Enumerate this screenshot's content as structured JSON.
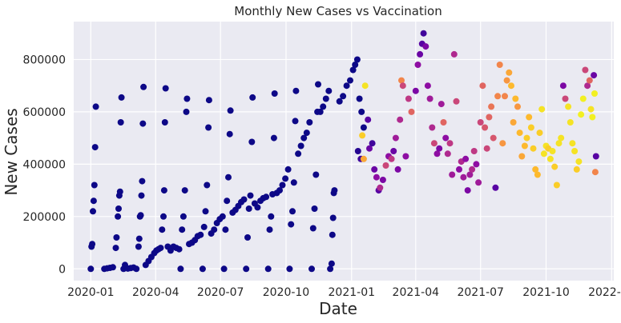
{
  "chart_data": {
    "type": "scatter",
    "title": "Monthly New Cases vs Vaccination",
    "xlabel": "Date",
    "ylabel": "New Cases",
    "x_range": [
      "2019-12-08",
      "2022-01-04"
    ],
    "y_range": [
      -45000,
      945000
    ],
    "x_ticks": [
      "2020-01-01",
      "2020-04-01",
      "2020-07-01",
      "2020-10-01",
      "2021-01-01",
      "2021-04-01",
      "2021-07-01",
      "2021-10-01",
      "2022-01-01"
    ],
    "x_tick_labels": [
      "2020-01",
      "2020-04",
      "2020-07",
      "2020-10",
      "2021-01",
      "2021-04",
      "2021-07",
      "2021-10",
      "2022-01"
    ],
    "y_ticks": [
      0,
      200000,
      400000,
      600000,
      800000
    ],
    "y_tick_labels": [
      "0",
      "200000",
      "400000",
      "600000",
      "800000"
    ],
    "grid": true,
    "legend": "none",
    "colormap": "plasma",
    "background_color": "#eaeaf2",
    "colors": {
      "unvaccinated": "#0d0887",
      "low": "#4c02a1",
      "mid": "#9c179e",
      "mid_high": "#cc4778",
      "high": "#ed7953",
      "very_high": "#fdb42f",
      "max": "#f0f921"
    },
    "points": [
      [
        "2020-01-01",
        0,
        0
      ],
      [
        "2020-01-02",
        85000,
        0
      ],
      [
        "2020-01-03",
        95000,
        0
      ],
      [
        "2020-01-04",
        220000,
        0
      ],
      [
        "2020-01-05",
        260000,
        0
      ],
      [
        "2020-01-06",
        320000,
        0
      ],
      [
        "2020-01-07",
        465000,
        0
      ],
      [
        "2020-01-08",
        620000,
        0
      ],
      [
        "2020-01-20",
        0,
        0
      ],
      [
        "2020-01-24",
        2000,
        0
      ],
      [
        "2020-01-28",
        4000,
        0
      ],
      [
        "2020-02-01",
        6000,
        0
      ],
      [
        "2020-02-05",
        80000,
        0
      ],
      [
        "2020-02-06",
        120000,
        0
      ],
      [
        "2020-02-08",
        200000,
        0
      ],
      [
        "2020-02-09",
        230000,
        0
      ],
      [
        "2020-02-10",
        280000,
        0
      ],
      [
        "2020-02-11",
        295000,
        0
      ],
      [
        "2020-02-12",
        560000,
        0
      ],
      [
        "2020-02-13",
        655000,
        0
      ],
      [
        "2020-02-16",
        0,
        0
      ],
      [
        "2020-02-18",
        15000,
        0
      ],
      [
        "2020-02-22",
        1000,
        0
      ],
      [
        "2020-02-26",
        3000,
        0
      ],
      [
        "2020-03-01",
        5000,
        0
      ],
      [
        "2020-03-05",
        0,
        0
      ],
      [
        "2020-03-08",
        85000,
        0
      ],
      [
        "2020-03-09",
        115000,
        0
      ],
      [
        "2020-03-10",
        200000,
        0
      ],
      [
        "2020-03-11",
        205000,
        0
      ],
      [
        "2020-03-12",
        280000,
        0
      ],
      [
        "2020-03-13",
        335000,
        0
      ],
      [
        "2020-03-14",
        555000,
        0
      ],
      [
        "2020-03-15",
        695000,
        0
      ],
      [
        "2020-03-18",
        15000,
        0
      ],
      [
        "2020-03-22",
        30000,
        0
      ],
      [
        "2020-03-26",
        45000,
        0
      ],
      [
        "2020-03-30",
        60000,
        0
      ],
      [
        "2020-04-02",
        70000,
        0
      ],
      [
        "2020-04-05",
        75000,
        0
      ],
      [
        "2020-04-08",
        80000,
        0
      ],
      [
        "2020-04-10",
        150000,
        0
      ],
      [
        "2020-04-12",
        200000,
        0
      ],
      [
        "2020-04-13",
        300000,
        0
      ],
      [
        "2020-04-14",
        560000,
        0
      ],
      [
        "2020-04-15",
        690000,
        0
      ],
      [
        "2020-04-18",
        85000,
        0
      ],
      [
        "2020-04-22",
        70000,
        0
      ],
      [
        "2020-04-26",
        85000,
        0
      ],
      [
        "2020-04-30",
        80000,
        0
      ],
      [
        "2020-05-04",
        75000,
        0
      ],
      [
        "2020-05-06",
        0,
        0
      ],
      [
        "2020-05-08",
        150000,
        0
      ],
      [
        "2020-05-10",
        200000,
        0
      ],
      [
        "2020-05-12",
        300000,
        0
      ],
      [
        "2020-05-14",
        600000,
        0
      ],
      [
        "2020-05-15",
        650000,
        0
      ],
      [
        "2020-05-18",
        95000,
        0
      ],
      [
        "2020-05-22",
        100000,
        0
      ],
      [
        "2020-05-26",
        110000,
        0
      ],
      [
        "2020-05-30",
        125000,
        0
      ],
      [
        "2020-06-03",
        130000,
        0
      ],
      [
        "2020-06-06",
        0,
        0
      ],
      [
        "2020-06-08",
        160000,
        0
      ],
      [
        "2020-06-10",
        220000,
        0
      ],
      [
        "2020-06-12",
        320000,
        0
      ],
      [
        "2020-06-14",
        540000,
        0
      ],
      [
        "2020-06-15",
        645000,
        0
      ],
      [
        "2020-06-18",
        135000,
        0
      ],
      [
        "2020-06-22",
        150000,
        0
      ],
      [
        "2020-06-26",
        175000,
        0
      ],
      [
        "2020-06-30",
        190000,
        0
      ],
      [
        "2020-07-04",
        200000,
        0
      ],
      [
        "2020-07-06",
        0,
        0
      ],
      [
        "2020-07-08",
        150000,
        0
      ],
      [
        "2020-07-10",
        260000,
        0
      ],
      [
        "2020-07-12",
        350000,
        0
      ],
      [
        "2020-07-14",
        515000,
        0
      ],
      [
        "2020-07-15",
        605000,
        0
      ],
      [
        "2020-07-18",
        215000,
        0
      ],
      [
        "2020-07-22",
        225000,
        0
      ],
      [
        "2020-07-26",
        240000,
        0
      ],
      [
        "2020-07-30",
        255000,
        0
      ],
      [
        "2020-08-03",
        265000,
        0
      ],
      [
        "2020-08-06",
        0,
        0
      ],
      [
        "2020-08-08",
        120000,
        0
      ],
      [
        "2020-08-10",
        230000,
        0
      ],
      [
        "2020-08-12",
        280000,
        0
      ],
      [
        "2020-08-14",
        485000,
        0
      ],
      [
        "2020-08-15",
        655000,
        0
      ],
      [
        "2020-08-18",
        250000,
        0
      ],
      [
        "2020-08-22",
        235000,
        0
      ],
      [
        "2020-08-26",
        260000,
        0
      ],
      [
        "2020-08-30",
        270000,
        0
      ],
      [
        "2020-09-03",
        275000,
        0
      ],
      [
        "2020-09-06",
        0,
        0
      ],
      [
        "2020-09-08",
        150000,
        0
      ],
      [
        "2020-09-10",
        200000,
        0
      ],
      [
        "2020-09-12",
        285000,
        0
      ],
      [
        "2020-09-14",
        500000,
        0
      ],
      [
        "2020-09-15",
        670000,
        0
      ],
      [
        "2020-09-18",
        290000,
        0
      ],
      [
        "2020-09-22",
        300000,
        0
      ],
      [
        "2020-09-26",
        320000,
        0
      ],
      [
        "2020-09-30",
        345000,
        0
      ],
      [
        "2020-10-04",
        380000,
        0
      ],
      [
        "2020-10-06",
        0,
        0
      ],
      [
        "2020-10-08",
        170000,
        0
      ],
      [
        "2020-10-10",
        220000,
        0
      ],
      [
        "2020-10-12",
        330000,
        0
      ],
      [
        "2020-10-14",
        565000,
        0
      ],
      [
        "2020-10-15",
        680000,
        0
      ],
      [
        "2020-10-18",
        440000,
        0
      ],
      [
        "2020-10-22",
        470000,
        0
      ],
      [
        "2020-10-26",
        500000,
        0
      ],
      [
        "2020-10-30",
        520000,
        0
      ],
      [
        "2020-11-03",
        560000,
        0
      ],
      [
        "2020-11-06",
        0,
        0
      ],
      [
        "2020-11-08",
        155000,
        0
      ],
      [
        "2020-11-10",
        230000,
        0
      ],
      [
        "2020-11-12",
        360000,
        0
      ],
      [
        "2020-11-14",
        600000,
        0
      ],
      [
        "2020-11-15",
        705000,
        0
      ],
      [
        "2020-11-18",
        600000,
        0
      ],
      [
        "2020-11-22",
        620000,
        0
      ],
      [
        "2020-11-26",
        650000,
        0
      ],
      [
        "2020-11-30",
        680000,
        0
      ],
      [
        "2020-12-02",
        0,
        0
      ],
      [
        "2020-12-04",
        20000,
        0
      ],
      [
        "2020-12-05",
        130000,
        0
      ],
      [
        "2020-12-06",
        195000,
        0
      ],
      [
        "2020-12-07",
        290000,
        0
      ],
      [
        "2020-12-08",
        300000,
        0
      ],
      [
        "2020-12-15",
        640000,
        0
      ],
      [
        "2020-12-20",
        660000,
        0
      ],
      [
        "2020-12-25",
        700000,
        0
      ],
      [
        "2020-12-30",
        720000,
        0
      ],
      [
        "2021-01-03",
        760000,
        0
      ],
      [
        "2021-01-06",
        780000,
        0
      ],
      [
        "2021-01-09",
        800000,
        0
      ],
      [
        "2021-01-12",
        650000,
        0
      ],
      [
        "2021-01-15",
        600000,
        0
      ],
      [
        "2021-01-18",
        540000,
        0
      ],
      [
        "2021-01-10",
        450000,
        0.05
      ],
      [
        "2021-01-14",
        420000,
        0.1
      ],
      [
        "2021-01-16",
        510000,
        0.9
      ],
      [
        "2021-01-18",
        420000,
        0.8
      ],
      [
        "2021-01-20",
        700000,
        0.95
      ],
      [
        "2021-01-24",
        570000,
        0.15
      ],
      [
        "2021-01-26",
        460000,
        0.2
      ],
      [
        "2021-01-30",
        480000,
        0.1
      ],
      [
        "2021-02-02",
        380000,
        0.2
      ],
      [
        "2021-02-05",
        350000,
        0.3
      ],
      [
        "2021-02-08",
        300000,
        0.15
      ],
      [
        "2021-02-10",
        310000,
        0.4
      ],
      [
        "2021-02-14",
        340000,
        0.25
      ],
      [
        "2021-02-18",
        395000,
        0.5
      ],
      [
        "2021-02-22",
        430000,
        0.3
      ],
      [
        "2021-02-26",
        420000,
        0.45
      ],
      [
        "2021-03-01",
        450000,
        0.2
      ],
      [
        "2021-03-04",
        500000,
        0.35
      ],
      [
        "2021-03-07",
        380000,
        0.25
      ],
      [
        "2021-03-10",
        570000,
        0.4
      ],
      [
        "2021-03-12",
        720000,
        0.7
      ],
      [
        "2021-03-14",
        700000,
        0.5
      ],
      [
        "2021-03-18",
        430000,
        0.3
      ],
      [
        "2021-03-22",
        650000,
        0.45
      ],
      [
        "2021-03-26",
        600000,
        0.6
      ],
      [
        "2021-04-01",
        680000,
        0.25
      ],
      [
        "2021-04-04",
        780000,
        0.3
      ],
      [
        "2021-04-07",
        820000,
        0.2
      ],
      [
        "2021-04-10",
        860000,
        0.15
      ],
      [
        "2021-04-12",
        900000,
        0.1
      ],
      [
        "2021-04-15",
        850000,
        0.25
      ],
      [
        "2021-04-18",
        700000,
        0.3
      ],
      [
        "2021-04-21",
        650000,
        0.35
      ],
      [
        "2021-04-24",
        540000,
        0.4
      ],
      [
        "2021-04-27",
        480000,
        0.5
      ],
      [
        "2021-05-01",
        440000,
        0.3
      ],
      [
        "2021-05-04",
        460000,
        0.25
      ],
      [
        "2021-05-07",
        630000,
        0.35
      ],
      [
        "2021-05-10",
        560000,
        0.6
      ],
      [
        "2021-05-13",
        500000,
        0.3
      ],
      [
        "2021-05-16",
        440000,
        0.4
      ],
      [
        "2021-05-19",
        480000,
        0.45
      ],
      [
        "2021-05-22",
        360000,
        0.35
      ],
      [
        "2021-05-25",
        820000,
        0.4
      ],
      [
        "2021-05-28",
        640000,
        0.5
      ],
      [
        "2021-06-01",
        380000,
        0.3
      ],
      [
        "2021-06-04",
        410000,
        0.4
      ],
      [
        "2021-06-07",
        350000,
        0.35
      ],
      [
        "2021-06-10",
        420000,
        0.3
      ],
      [
        "2021-06-13",
        300000,
        0.25
      ],
      [
        "2021-06-16",
        360000,
        0.35
      ],
      [
        "2021-06-19",
        380000,
        0.4
      ],
      [
        "2021-06-22",
        450000,
        0.45
      ],
      [
        "2021-06-25",
        400000,
        0.3
      ],
      [
        "2021-06-28",
        330000,
        0.35
      ],
      [
        "2021-07-01",
        560000,
        0.5
      ],
      [
        "2021-07-04",
        700000,
        0.6
      ],
      [
        "2021-07-07",
        540000,
        0.55
      ],
      [
        "2021-07-10",
        460000,
        0.5
      ],
      [
        "2021-07-13",
        580000,
        0.6
      ],
      [
        "2021-07-16",
        620000,
        0.65
      ],
      [
        "2021-07-19",
        500000,
        0.55
      ],
      [
        "2021-07-22",
        310000,
        0.15
      ],
      [
        "2021-07-25",
        660000,
        0.7
      ],
      [
        "2021-07-28",
        780000,
        0.7
      ],
      [
        "2021-08-01",
        480000,
        0.75
      ],
      [
        "2021-08-04",
        660000,
        0.7
      ],
      [
        "2021-08-07",
        720000,
        0.75
      ],
      [
        "2021-08-10",
        750000,
        0.8
      ],
      [
        "2021-08-13",
        700000,
        0.85
      ],
      [
        "2021-08-16",
        560000,
        0.8
      ],
      [
        "2021-08-19",
        650000,
        0.85
      ],
      [
        "2021-08-22",
        620000,
        0.75
      ],
      [
        "2021-08-25",
        520000,
        0.85
      ],
      [
        "2021-08-28",
        430000,
        0.8
      ],
      [
        "2021-09-01",
        470000,
        0.85
      ],
      [
        "2021-09-04",
        500000,
        0.9
      ],
      [
        "2021-09-07",
        580000,
        0.85
      ],
      [
        "2021-09-10",
        540000,
        0.9
      ],
      [
        "2021-09-13",
        460000,
        0.9
      ],
      [
        "2021-09-16",
        380000,
        0.85
      ],
      [
        "2021-09-19",
        360000,
        0.85
      ],
      [
        "2021-09-22",
        520000,
        0.9
      ],
      [
        "2021-09-25",
        610000,
        0.95
      ],
      [
        "2021-09-28",
        440000,
        0.95
      ],
      [
        "2021-10-01",
        470000,
        0.95
      ],
      [
        "2021-10-04",
        460000,
        0.9
      ],
      [
        "2021-10-07",
        420000,
        0.95
      ],
      [
        "2021-10-10",
        450000,
        0.95
      ],
      [
        "2021-10-13",
        390000,
        0.9
      ],
      [
        "2021-10-16",
        320000,
        0.9
      ],
      [
        "2021-10-19",
        480000,
        0.95
      ],
      [
        "2021-10-22",
        500000,
        0.95
      ],
      [
        "2021-10-25",
        700000,
        0.25
      ],
      [
        "2021-10-28",
        650000,
        0.5
      ],
      [
        "2021-11-01",
        620000,
        0.95
      ],
      [
        "2021-11-04",
        560000,
        0.95
      ],
      [
        "2021-11-07",
        480000,
        0.95
      ],
      [
        "2021-11-10",
        450000,
        0.95
      ],
      [
        "2021-11-13",
        380000,
        0.9
      ],
      [
        "2021-11-16",
        410000,
        0.95
      ],
      [
        "2021-11-19",
        590000,
        0.98
      ],
      [
        "2021-11-22",
        650000,
        0.98
      ],
      [
        "2021-11-25",
        760000,
        0.5
      ],
      [
        "2021-11-28",
        700000,
        0.4
      ],
      [
        "2021-12-01",
        720000,
        0.6
      ],
      [
        "2021-12-03",
        610000,
        0.95
      ],
      [
        "2021-12-05",
        580000,
        0.98
      ],
      [
        "2021-12-07",
        740000,
        0.2
      ],
      [
        "2021-12-08",
        670000,
        0.98
      ],
      [
        "2021-12-09",
        370000,
        0.7
      ],
      [
        "2021-12-10",
        430000,
        0.15
      ]
    ]
  }
}
